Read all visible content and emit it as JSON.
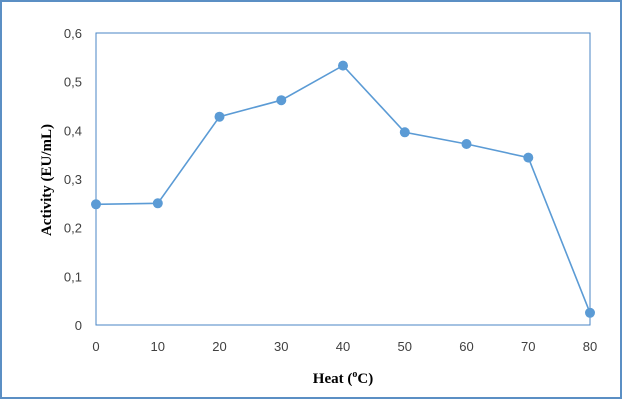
{
  "chart_data": {
    "type": "line",
    "title": "",
    "xlabel_main": "Heat (",
    "xlabel_sup": "o",
    "xlabel_tail": "C)",
    "ylabel": "Activity  (EU/mL)",
    "x": [
      0,
      10,
      20,
      30,
      40,
      50,
      60,
      70,
      80
    ],
    "x_tick_labels": [
      "0",
      "10",
      "20",
      "30",
      "40",
      "50",
      "60",
      "70",
      "80"
    ],
    "xlim": [
      0,
      80
    ],
    "y_ticks": [
      0,
      0.1,
      0.2,
      0.3,
      0.4,
      0.5,
      0.6
    ],
    "y_tick_labels": [
      "0",
      "0,1",
      "0,2",
      "0,3",
      "0,4",
      "0,5",
      "0,6"
    ],
    "ylim": [
      0,
      0.6
    ],
    "grid": false,
    "legend": "none",
    "series": [
      {
        "values": [
          0.248,
          0.25,
          0.428,
          0.462,
          0.533,
          0.396,
          0.372,
          0.344,
          0.025
        ],
        "color": "#5b9bd5"
      }
    ],
    "frame_color": "#5b8fc4",
    "plot_border_color": "#4a86c5"
  }
}
